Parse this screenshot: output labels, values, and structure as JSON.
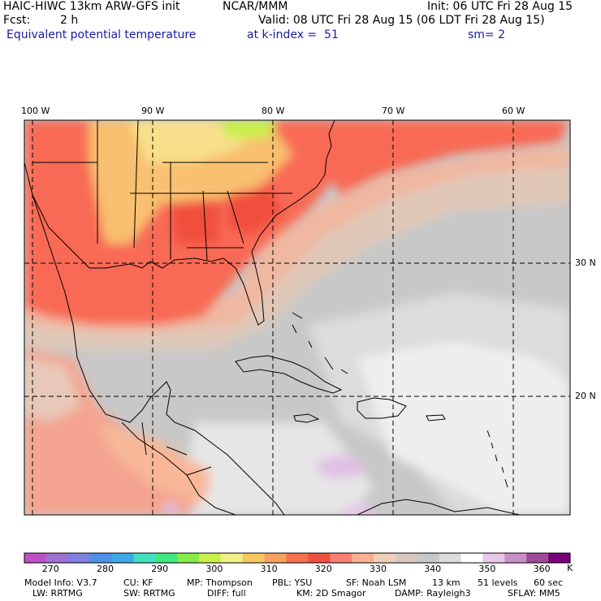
{
  "header": {
    "model": "HAIC-HIWC 13km ARW-GFS init",
    "org": "NCAR/MMM",
    "init": "Init: 06 UTC Fri 28 Aug 15",
    "fcst_label": "Fcst:",
    "fcst_value": "2 h",
    "valid": "Valid: 08 UTC Fri 28 Aug 15 (06 LDT Fri 28 Aug 15)",
    "field": "Equivalent potential temperature",
    "level": "at k-index =  51",
    "smooth": "sm= 2"
  },
  "map": {
    "lon_labels": [
      "100 W",
      "90 W",
      "80 W",
      "70 W",
      "60 W"
    ],
    "lat_labels": [
      "30 N",
      "20 N"
    ]
  },
  "colorbar": {
    "unit": "K",
    "labels": [
      "270",
      "280",
      "290",
      "300",
      "310",
      "320",
      "330",
      "340",
      "350",
      "360"
    ],
    "colors": [
      "#c050c8",
      "#a070d0",
      "#8080e0",
      "#5090e8",
      "#40a8e8",
      "#40e0c0",
      "#40e880",
      "#88ec48",
      "#c8f048",
      "#f0f088",
      "#f8c860",
      "#f8a060",
      "#f87050",
      "#f05040",
      "#f87f73",
      "#f8b090",
      "#f0d0b8",
      "#d8c8c0",
      "#c8c8c8",
      "#dcdcdc",
      "#ffffff",
      "#e8c8e8",
      "#c890c8",
      "#a04898",
      "#780078"
    ]
  },
  "footer": {
    "line1": [
      "Model Info: V3.7",
      "CU: KF",
      "MP: Thompson",
      "PBL: YSU",
      "SF: Noah LSM",
      "13 km",
      "51 levels",
      "60 sec"
    ],
    "line2": [
      "LW: RRTMG",
      "SW: RRTMG",
      "DIFF: full",
      "KM: 2D Smagor",
      "DAMP: Rayleigh3",
      "SFLAY: MM5"
    ]
  }
}
